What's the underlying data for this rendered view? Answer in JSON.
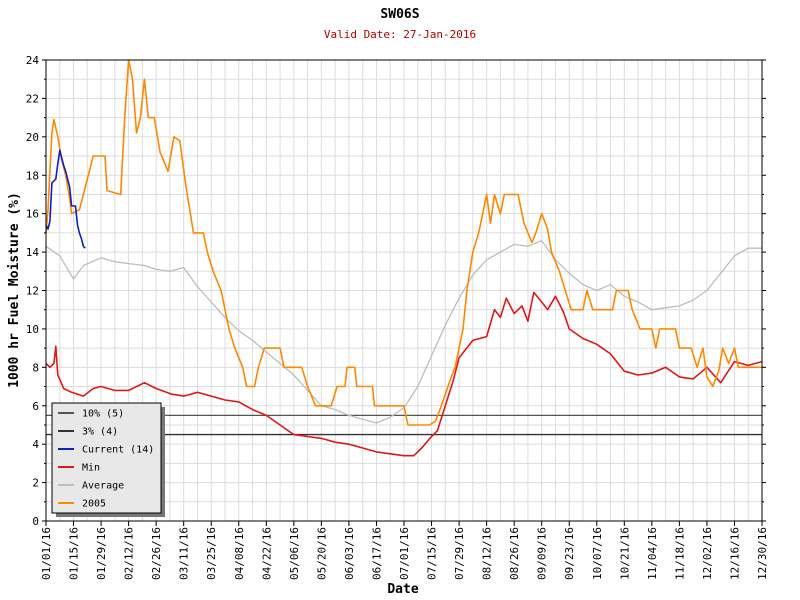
{
  "chart_data": {
    "type": "line",
    "title": "SW06S",
    "subtitle": "Valid Date: 27-Jan-2016",
    "xlabel": "Date",
    "ylabel": "1000 hr Fuel Moisture (%)",
    "ylim": [
      0,
      24
    ],
    "yticks": [
      "0",
      "2",
      "4",
      "6",
      "8",
      "10",
      "12",
      "14",
      "16",
      "18",
      "20",
      "22",
      "24"
    ],
    "xlim": [
      "01/01/16",
      "12/30/16"
    ],
    "xticks": [
      "01/01/16",
      "01/15/16",
      "01/29/16",
      "02/12/16",
      "02/26/16",
      "03/11/16",
      "03/25/16",
      "04/08/16",
      "04/22/16",
      "05/06/16",
      "05/20/16",
      "06/03/16",
      "06/17/16",
      "07/01/16",
      "07/15/16",
      "07/29/16",
      "08/12/16",
      "08/26/16",
      "09/09/16",
      "09/23/16",
      "10/07/16",
      "10/21/16",
      "11/04/16",
      "11/18/16",
      "12/02/16",
      "12/16/16",
      "12/30/16"
    ],
    "grid": true,
    "legend_position": "bottom-left",
    "colors": {
      "pct10": "#555555",
      "pct3": "#333333",
      "current": "#1020c0",
      "min": "#e01818",
      "average": "#bdbdbd",
      "year2005": "#ff8800"
    },
    "hlines": [
      {
        "name": "10% (5)",
        "value": 5.5
      },
      {
        "name": "3% (4)",
        "value": 4.5
      }
    ],
    "series": [
      {
        "name": "Current (14)",
        "points": [
          [
            "01/01/16",
            15.4
          ],
          [
            "01/02/16",
            15.2
          ],
          [
            "01/03/16",
            15.6
          ],
          [
            "01/04/16",
            17.6
          ],
          [
            "01/06/16",
            17.8
          ],
          [
            "01/07/16",
            18.6
          ],
          [
            "01/08/16",
            19.3
          ],
          [
            "01/09/16",
            18.9
          ],
          [
            "01/10/16",
            18.5
          ],
          [
            "01/11/16",
            18.2
          ],
          [
            "01/12/16",
            17.8
          ],
          [
            "01/13/16",
            17.4
          ],
          [
            "01/14/16",
            16.4
          ],
          [
            "01/16/16",
            16.4
          ],
          [
            "01/17/16",
            15.4
          ],
          [
            "01/18/16",
            15.0
          ],
          [
            "01/19/16",
            14.7
          ],
          [
            "01/20/16",
            14.3
          ],
          [
            "01/21/16",
            14.2
          ]
        ]
      },
      {
        "name": "Min",
        "points": [
          [
            "01/01/16",
            8.2
          ],
          [
            "01/03/16",
            8.0
          ],
          [
            "01/05/16",
            8.2
          ],
          [
            "01/06/16",
            9.1
          ],
          [
            "01/07/16",
            7.6
          ],
          [
            "01/10/16",
            6.9
          ],
          [
            "01/14/16",
            6.7
          ],
          [
            "01/20/16",
            6.5
          ],
          [
            "01/25/16",
            6.9
          ],
          [
            "01/29/16",
            7.0
          ],
          [
            "02/05/16",
            6.8
          ],
          [
            "02/12/16",
            6.8
          ],
          [
            "02/20/16",
            7.2
          ],
          [
            "02/26/16",
            6.9
          ],
          [
            "03/05/16",
            6.6
          ],
          [
            "03/11/16",
            6.5
          ],
          [
            "03/18/16",
            6.7
          ],
          [
            "03/25/16",
            6.5
          ],
          [
            "04/01/16",
            6.3
          ],
          [
            "04/08/16",
            6.2
          ],
          [
            "04/15/16",
            5.8
          ],
          [
            "04/22/16",
            5.5
          ],
          [
            "04/29/16",
            5.0
          ],
          [
            "05/06/16",
            4.5
          ],
          [
            "05/13/16",
            4.4
          ],
          [
            "05/20/16",
            4.3
          ],
          [
            "05/27/16",
            4.1
          ],
          [
            "06/03/16",
            4.0
          ],
          [
            "06/10/16",
            3.8
          ],
          [
            "06/17/16",
            3.6
          ],
          [
            "06/24/16",
            3.5
          ],
          [
            "07/01/16",
            3.4
          ],
          [
            "07/06/16",
            3.4
          ],
          [
            "07/10/16",
            3.8
          ],
          [
            "07/15/16",
            4.4
          ],
          [
            "07/18/16",
            4.7
          ],
          [
            "07/22/16",
            6.0
          ],
          [
            "07/26/16",
            7.3
          ],
          [
            "07/29/16",
            8.5
          ],
          [
            "08/05/16",
            9.4
          ],
          [
            "08/12/16",
            9.6
          ],
          [
            "08/16/16",
            11.0
          ],
          [
            "08/19/16",
            10.6
          ],
          [
            "08/22/16",
            11.6
          ],
          [
            "08/26/16",
            10.8
          ],
          [
            "08/30/16",
            11.2
          ],
          [
            "09/02/16",
            10.4
          ],
          [
            "09/05/16",
            11.9
          ],
          [
            "09/09/16",
            11.4
          ],
          [
            "09/12/16",
            11.0
          ],
          [
            "09/16/16",
            11.7
          ],
          [
            "09/20/16",
            10.9
          ],
          [
            "09/23/16",
            10.0
          ],
          [
            "09/30/16",
            9.5
          ],
          [
            "10/07/16",
            9.2
          ],
          [
            "10/14/16",
            8.7
          ],
          [
            "10/21/16",
            7.8
          ],
          [
            "10/28/16",
            7.6
          ],
          [
            "11/04/16",
            7.7
          ],
          [
            "11/11/16",
            8.0
          ],
          [
            "11/18/16",
            7.5
          ],
          [
            "11/25/16",
            7.4
          ],
          [
            "12/02/16",
            8.0
          ],
          [
            "12/09/16",
            7.2
          ],
          [
            "12/16/16",
            8.3
          ],
          [
            "12/23/16",
            8.1
          ],
          [
            "12/30/16",
            8.3
          ]
        ]
      },
      {
        "name": "Average",
        "points": [
          [
            "01/01/16",
            14.3
          ],
          [
            "01/08/16",
            13.8
          ],
          [
            "01/15/16",
            12.6
          ],
          [
            "01/20/16",
            13.3
          ],
          [
            "01/29/16",
            13.7
          ],
          [
            "02/05/16",
            13.5
          ],
          [
            "02/12/16",
            13.4
          ],
          [
            "02/20/16",
            13.3
          ],
          [
            "02/26/16",
            13.1
          ],
          [
            "03/04/16",
            13.0
          ],
          [
            "03/11/16",
            13.2
          ],
          [
            "03/18/16",
            12.2
          ],
          [
            "03/25/16",
            11.4
          ],
          [
            "04/01/16",
            10.6
          ],
          [
            "04/08/16",
            9.9
          ],
          [
            "04/15/16",
            9.4
          ],
          [
            "04/22/16",
            8.8
          ],
          [
            "04/29/16",
            8.2
          ],
          [
            "05/06/16",
            7.6
          ],
          [
            "05/13/16",
            6.8
          ],
          [
            "05/20/16",
            6.0
          ],
          [
            "05/27/16",
            5.8
          ],
          [
            "06/03/16",
            5.5
          ],
          [
            "06/10/16",
            5.3
          ],
          [
            "06/17/16",
            5.1
          ],
          [
            "06/24/16",
            5.4
          ],
          [
            "07/01/16",
            5.9
          ],
          [
            "07/08/16",
            7.0
          ],
          [
            "07/15/16",
            8.6
          ],
          [
            "07/22/16",
            10.2
          ],
          [
            "07/29/16",
            11.6
          ],
          [
            "08/05/16",
            12.8
          ],
          [
            "08/12/16",
            13.6
          ],
          [
            "08/19/16",
            14.0
          ],
          [
            "08/26/16",
            14.4
          ],
          [
            "09/02/16",
            14.3
          ],
          [
            "09/09/16",
            14.6
          ],
          [
            "09/16/16",
            13.6
          ],
          [
            "09/23/16",
            12.9
          ],
          [
            "09/30/16",
            12.3
          ],
          [
            "10/07/16",
            12.0
          ],
          [
            "10/14/16",
            12.3
          ],
          [
            "10/21/16",
            11.7
          ],
          [
            "10/28/16",
            11.4
          ],
          [
            "11/04/16",
            11.0
          ],
          [
            "11/11/16",
            11.1
          ],
          [
            "11/18/16",
            11.2
          ],
          [
            "11/25/16",
            11.5
          ],
          [
            "12/02/16",
            12.0
          ],
          [
            "12/09/16",
            12.9
          ],
          [
            "12/16/16",
            13.8
          ],
          [
            "12/23/16",
            14.2
          ],
          [
            "12/30/16",
            14.2
          ]
        ]
      },
      {
        "name": "2005",
        "points": [
          [
            "01/01/16",
            15.0
          ],
          [
            "01/02/16",
            16.2
          ],
          [
            "01/04/16",
            20.2
          ],
          [
            "01/05/16",
            20.9
          ],
          [
            "01/07/16",
            20.0
          ],
          [
            "01/09/16",
            18.8
          ],
          [
            "01/11/16",
            18.0
          ],
          [
            "01/13/16",
            16.8
          ],
          [
            "01/14/16",
            16.0
          ],
          [
            "01/18/16",
            16.2
          ],
          [
            "01/20/16",
            17.0
          ],
          [
            "01/23/16",
            18.2
          ],
          [
            "01/25/16",
            19.0
          ],
          [
            "01/31/16",
            19.0
          ],
          [
            "02/01/16",
            17.2
          ],
          [
            "02/08/16",
            17.0
          ],
          [
            "02/10/16",
            21.0
          ],
          [
            "02/12/16",
            24.0
          ],
          [
            "02/14/16",
            23.0
          ],
          [
            "02/16/16",
            20.2
          ],
          [
            "02/18/16",
            21.0
          ],
          [
            "02/20/16",
            23.0
          ],
          [
            "02/22/16",
            21.0
          ],
          [
            "02/25/16",
            21.0
          ],
          [
            "02/28/16",
            19.2
          ],
          [
            "03/03/16",
            18.2
          ],
          [
            "03/06/16",
            20.0
          ],
          [
            "03/09/16",
            19.8
          ],
          [
            "03/12/16",
            17.5
          ],
          [
            "03/16/16",
            15.0
          ],
          [
            "03/21/16",
            15.0
          ],
          [
            "03/23/16",
            14.0
          ],
          [
            "03/26/16",
            13.0
          ],
          [
            "03/30/16",
            12.0
          ],
          [
            "04/03/16",
            10.0
          ],
          [
            "04/06/16",
            9.0
          ],
          [
            "04/10/16",
            8.0
          ],
          [
            "04/12/16",
            7.0
          ],
          [
            "04/16/16",
            7.0
          ],
          [
            "04/18/16",
            8.0
          ],
          [
            "04/21/16",
            9.0
          ],
          [
            "04/29/16",
            9.0
          ],
          [
            "05/01/16",
            8.0
          ],
          [
            "05/10/16",
            8.0
          ],
          [
            "05/13/16",
            7.0
          ],
          [
            "05/17/16",
            6.0
          ],
          [
            "05/25/16",
            6.0
          ],
          [
            "05/28/16",
            7.0
          ],
          [
            "06/01/16",
            7.0
          ],
          [
            "06/02/16",
            8.0
          ],
          [
            "06/06/16",
            8.0
          ],
          [
            "06/07/16",
            7.0
          ],
          [
            "06/15/16",
            7.0
          ],
          [
            "06/16/16",
            6.0
          ],
          [
            "06/24/16",
            6.0
          ],
          [
            "07/01/16",
            6.0
          ],
          [
            "07/03/16",
            5.0
          ],
          [
            "07/14/16",
            5.0
          ],
          [
            "07/17/16",
            5.2
          ],
          [
            "07/20/16",
            6.0
          ],
          [
            "07/24/16",
            7.2
          ],
          [
            "07/27/16",
            8.0
          ],
          [
            "07/31/16",
            10.0
          ],
          [
            "08/02/16",
            12.0
          ],
          [
            "08/05/16",
            14.0
          ],
          [
            "08/08/16",
            15.0
          ],
          [
            "08/10/16",
            16.0
          ],
          [
            "08/12/16",
            17.0
          ],
          [
            "08/14/16",
            15.5
          ],
          [
            "08/16/16",
            17.0
          ],
          [
            "08/19/16",
            16.0
          ],
          [
            "08/21/16",
            17.0
          ],
          [
            "08/28/16",
            17.0
          ],
          [
            "08/31/16",
            15.5
          ],
          [
            "09/04/16",
            14.5
          ],
          [
            "09/06/16",
            15.0
          ],
          [
            "09/09/16",
            16.0
          ],
          [
            "09/12/16",
            15.2
          ],
          [
            "09/14/16",
            14.0
          ],
          [
            "09/18/16",
            13.0
          ],
          [
            "09/21/16",
            12.0
          ],
          [
            "09/24/16",
            11.0
          ],
          [
            "09/30/16",
            11.0
          ],
          [
            "10/02/16",
            12.0
          ],
          [
            "10/05/16",
            11.0
          ],
          [
            "10/15/16",
            11.0
          ],
          [
            "10/17/16",
            12.0
          ],
          [
            "10/23/16",
            12.0
          ],
          [
            "10/25/16",
            11.0
          ],
          [
            "10/29/16",
            10.0
          ],
          [
            "11/04/16",
            10.0
          ],
          [
            "11/06/16",
            9.0
          ],
          [
            "11/08/16",
            10.0
          ],
          [
            "11/16/16",
            10.0
          ],
          [
            "11/18/16",
            9.0
          ],
          [
            "11/24/16",
            9.0
          ],
          [
            "11/27/16",
            8.0
          ],
          [
            "11/30/16",
            9.0
          ],
          [
            "12/02/16",
            7.5
          ],
          [
            "12/05/16",
            7.0
          ],
          [
            "12/08/16",
            7.8
          ],
          [
            "12/10/16",
            9.0
          ],
          [
            "12/13/16",
            8.2
          ],
          [
            "12/16/16",
            9.0
          ],
          [
            "12/18/16",
            8.0
          ],
          [
            "12/20/16",
            8.0
          ],
          [
            "12/23/16",
            8.0
          ],
          [
            "12/30/16",
            8.0
          ]
        ]
      }
    ]
  }
}
